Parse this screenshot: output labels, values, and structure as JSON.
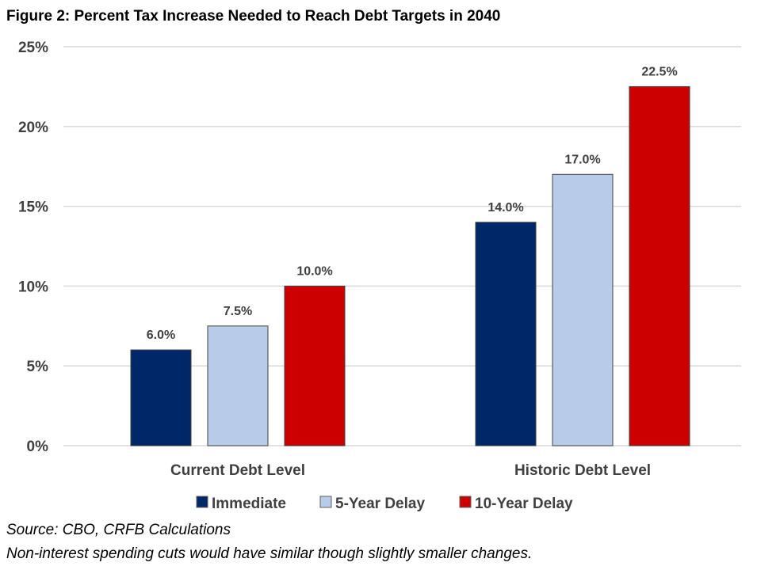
{
  "chart_data": {
    "type": "bar",
    "title": "Figure 2: Percent Tax Increase Needed to Reach Debt Targets in 2040",
    "categories": [
      "Current Debt Level",
      "Historic Debt Level"
    ],
    "series": [
      {
        "name": "Immediate",
        "color": "#002868",
        "values": [
          6.0,
          14.0
        ],
        "labels": [
          "6.0%",
          "14.0%"
        ]
      },
      {
        "name": "5-Year Delay",
        "color": "#b8cce9",
        "values": [
          7.5,
          17.0
        ],
        "labels": [
          "7.5%",
          "17.0%"
        ]
      },
      {
        "name": "10-Year Delay",
        "color": "#cc0000",
        "values": [
          10.0,
          22.5
        ],
        "labels": [
          "10.0%",
          "22.5%"
        ]
      }
    ],
    "ylim": [
      0,
      25
    ],
    "yticks": [
      0,
      5,
      10,
      15,
      20,
      25
    ],
    "ytick_labels": [
      "0%",
      "5%",
      "10%",
      "15%",
      "20%",
      "25%"
    ],
    "xlabel": "",
    "ylabel": "",
    "grid": true,
    "legend_position": "bottom"
  },
  "notes": {
    "source": "Source: CBO, CRFB Calculations",
    "footnote": "Non-interest spending cuts would have similar though slightly smaller changes."
  }
}
